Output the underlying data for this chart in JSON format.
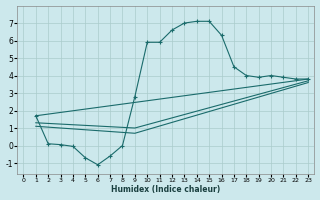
{
  "xlabel": "Humidex (Indice chaleur)",
  "xlim": [
    -0.5,
    23.5
  ],
  "ylim": [
    -1.6,
    8.0
  ],
  "xticks": [
    0,
    1,
    2,
    3,
    4,
    5,
    6,
    7,
    8,
    9,
    10,
    11,
    12,
    13,
    14,
    15,
    16,
    17,
    18,
    19,
    20,
    21,
    22,
    23
  ],
  "yticks": [
    -1,
    0,
    1,
    2,
    3,
    4,
    5,
    6,
    7
  ],
  "bg_color": "#cce8ec",
  "grid_color": "#aacccc",
  "line_color": "#1a6b6b",
  "main_curve": {
    "x": [
      1,
      2,
      3,
      4,
      5,
      6,
      7,
      8,
      9,
      10,
      11,
      12,
      13,
      14,
      15,
      16,
      17,
      18,
      19,
      20,
      21,
      22,
      23
    ],
    "y": [
      1.7,
      0.1,
      0.05,
      -0.05,
      -0.7,
      -1.1,
      -0.6,
      0.0,
      2.8,
      5.9,
      5.9,
      6.6,
      7.0,
      7.1,
      7.1,
      6.3,
      4.5,
      4.0,
      3.9,
      4.0,
      3.9,
      3.8,
      3.8
    ]
  },
  "line1": {
    "x": [
      1,
      23
    ],
    "y": [
      1.7,
      3.8
    ]
  },
  "line2": {
    "x": [
      1,
      9,
      23
    ],
    "y": [
      1.3,
      1.0,
      3.7
    ]
  },
  "line3": {
    "x": [
      1,
      9,
      23
    ],
    "y": [
      1.1,
      0.7,
      3.6
    ]
  }
}
